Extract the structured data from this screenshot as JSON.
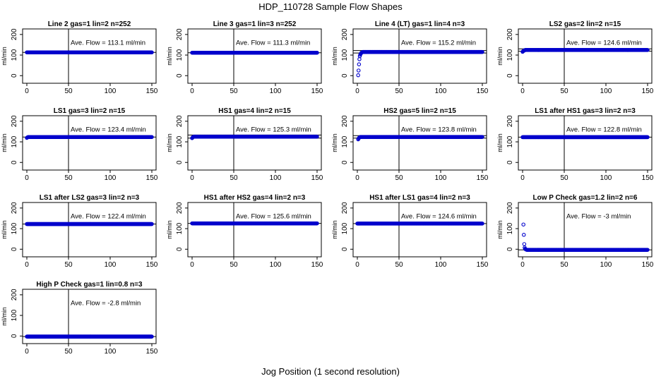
{
  "figure": {
    "title": "HDP_110728  Sample Flow Shapes",
    "xlabel": "Jog Position (1 second resolution)"
  },
  "chart_data": [
    {
      "type": "scatter",
      "title": "Line 2 gas=1 lin=2 n=252",
      "ylabel": "ml/min",
      "annotation": "Ave. Flow = 113.1  ml/min",
      "xlim": [
        0,
        150
      ],
      "ylim": [
        -30,
        220
      ],
      "xticks": [
        "0",
        "50",
        "100",
        "150"
      ],
      "yticks": [
        "0",
        "100",
        "200"
      ],
      "vline": 50,
      "hlines": [
        113.1
      ],
      "points": {
        "start": 0,
        "end": 150,
        "step": 0.5,
        "values": [
          113.1
        ]
      }
    },
    {
      "type": "scatter",
      "title": "Line 3 gas=1 lin=3 n=252",
      "ylabel": "ml/min",
      "annotation": "Ave. Flow = 111.3  ml/min",
      "xlim": [
        0,
        150
      ],
      "ylim": [
        -30,
        220
      ],
      "xticks": [
        "0",
        "50",
        "100",
        "150"
      ],
      "yticks": [
        "0",
        "100",
        "200"
      ],
      "vline": 50,
      "hlines": [
        111.3
      ],
      "points": {
        "start": 0,
        "end": 150,
        "step": 0.5,
        "values": [
          111.3
        ]
      }
    },
    {
      "type": "scatter",
      "title": "Line 4 (LT) gas=1 lin=4 n=3",
      "ylabel": "ml/min",
      "annotation": "Ave. Flow = 115.2  ml/min",
      "xlim": [
        0,
        150
      ],
      "ylim": [
        -30,
        220
      ],
      "xticks": [
        "0",
        "50",
        "100",
        "150"
      ],
      "yticks": [
        "0",
        "100",
        "200"
      ],
      "vline": 50,
      "hlines": [
        110,
        122
      ],
      "points": {
        "start": 1,
        "end": 150,
        "step": 0.5,
        "values": [
          2,
          25,
          55,
          80,
          95,
          102,
          106,
          109,
          111,
          113,
          114,
          115
        ]
      }
    },
    {
      "type": "scatter",
      "title": "LS2 gas=2 lin=2 n=15",
      "ylabel": "ml/min",
      "annotation": "Ave. Flow = 124.6  ml/min",
      "xlim": [
        0,
        150
      ],
      "ylim": [
        -30,
        220
      ],
      "xticks": [
        "0",
        "50",
        "100",
        "150"
      ],
      "yticks": [
        "0",
        "100",
        "200"
      ],
      "vline": 50,
      "hlines": [
        119,
        130
      ],
      "points": {
        "start": 0,
        "end": 150,
        "step": 0.5,
        "values": [
          116,
          118,
          120,
          121,
          122,
          123,
          124.6
        ]
      }
    },
    {
      "type": "scatter",
      "title": "LS1 gas=3 lin=2 n=15",
      "ylabel": "ml/min",
      "annotation": "Ave. Flow = 123.4  ml/min",
      "xlim": [
        0,
        150
      ],
      "ylim": [
        -30,
        220
      ],
      "xticks": [
        "0",
        "50",
        "100",
        "150"
      ],
      "yticks": [
        "0",
        "100",
        "200"
      ],
      "vline": 50,
      "hlines": [
        123.4
      ],
      "points": {
        "start": 0,
        "end": 150,
        "step": 0.5,
        "values": [
          119,
          121,
          122,
          123.4
        ]
      }
    },
    {
      "type": "scatter",
      "title": "HS1 gas=4 lin=2 n=15",
      "ylabel": "ml/min",
      "annotation": "Ave. Flow = 125.3  ml/min",
      "xlim": [
        0,
        150
      ],
      "ylim": [
        -30,
        220
      ],
      "xticks": [
        "0",
        "50",
        "100",
        "150"
      ],
      "yticks": [
        "0",
        "100",
        "200"
      ],
      "vline": 50,
      "hlines": [
        118,
        133
      ],
      "points": {
        "start": 0,
        "end": 150,
        "step": 0.5,
        "values": [
          118,
          121,
          123,
          124,
          125.3
        ]
      }
    },
    {
      "type": "scatter",
      "title": "HS2 gas=5 lin=2 n=15",
      "ylabel": "ml/min",
      "annotation": "Ave. Flow = 123.8  ml/min",
      "xlim": [
        0,
        150
      ],
      "ylim": [
        -30,
        220
      ],
      "xticks": [
        "0",
        "50",
        "100",
        "150"
      ],
      "yticks": [
        "0",
        "100",
        "200"
      ],
      "vline": 50,
      "hlines": [
        118,
        130
      ],
      "points": {
        "start": 1,
        "end": 150,
        "step": 0.5,
        "values": [
          112,
          116,
          119,
          121,
          122,
          123.8
        ]
      }
    },
    {
      "type": "scatter",
      "title": "LS1 after HS1 gas=3 lin=2 n=3",
      "ylabel": "ml/min",
      "annotation": "Ave. Flow = 122.8  ml/min",
      "xlim": [
        0,
        150
      ],
      "ylim": [
        -30,
        220
      ],
      "xticks": [
        "0",
        "50",
        "100",
        "150"
      ],
      "yticks": [
        "0",
        "100",
        "200"
      ],
      "vline": 50,
      "hlines": [
        122.8
      ],
      "points": {
        "start": 0,
        "end": 150,
        "step": 0.5,
        "values": [
          122.8
        ]
      }
    },
    {
      "type": "scatter",
      "title": "LS1 after LS2 gas=3 lin=2 n=3",
      "ylabel": "ml/min",
      "annotation": "Ave. Flow = 122.4  ml/min",
      "xlim": [
        0,
        150
      ],
      "ylim": [
        -30,
        220
      ],
      "xticks": [
        "0",
        "50",
        "100",
        "150"
      ],
      "yticks": [
        "0",
        "100",
        "200"
      ],
      "vline": 50,
      "hlines": [
        122.4
      ],
      "points": {
        "start": 0,
        "end": 150,
        "step": 0.5,
        "values": [
          122.4
        ]
      }
    },
    {
      "type": "scatter",
      "title": "HS1 after HS2 gas=4 lin=2 n=3",
      "ylabel": "ml/min",
      "annotation": "Ave. Flow = 125.6  ml/min",
      "xlim": [
        0,
        150
      ],
      "ylim": [
        -30,
        220
      ],
      "xticks": [
        "0",
        "50",
        "100",
        "150"
      ],
      "yticks": [
        "0",
        "100",
        "200"
      ],
      "vline": 50,
      "hlines": [
        125.6
      ],
      "points": {
        "start": 0,
        "end": 150,
        "step": 0.5,
        "values": [
          125.6
        ]
      }
    },
    {
      "type": "scatter",
      "title": "HS1 after LS1 gas=4 lin=2 n=3",
      "ylabel": "ml/min",
      "annotation": "Ave. Flow = 124.6  ml/min",
      "xlim": [
        0,
        150
      ],
      "ylim": [
        -30,
        220
      ],
      "xticks": [
        "0",
        "50",
        "100",
        "150"
      ],
      "yticks": [
        "0",
        "100",
        "200"
      ],
      "vline": 50,
      "hlines": [
        124.6
      ],
      "points": {
        "start": 0,
        "end": 150,
        "step": 0.5,
        "values": [
          124.6
        ]
      }
    },
    {
      "type": "scatter",
      "title": "Low P Check gas=1.2 lin=2 n=6",
      "ylabel": "ml/min",
      "annotation": "Ave. Flow = -3  ml/min",
      "xlim": [
        0,
        150
      ],
      "ylim": [
        -30,
        220
      ],
      "xticks": [
        "0",
        "50",
        "100",
        "150"
      ],
      "yticks": [
        "0",
        "100",
        "200"
      ],
      "vline": 50,
      "hlines": [
        -3
      ],
      "points": {
        "start": 1,
        "end": 150,
        "step": 0.5,
        "values": [
          120,
          70,
          25,
          8,
          2,
          0,
          -1,
          -2,
          -3
        ]
      }
    },
    {
      "type": "scatter",
      "title": "High P Check gas=1 lin=0.8 n=3",
      "ylabel": "ml/min",
      "annotation": "Ave. Flow =  -2.8  ml/min",
      "xlim": [
        0,
        150
      ],
      "ylim": [
        -30,
        220
      ],
      "xticks": [
        "0",
        "50",
        "100",
        "150"
      ],
      "yticks": [
        "0",
        "100",
        "200"
      ],
      "vline": 50,
      "hlines": [
        -2.8
      ],
      "points": {
        "start": 0,
        "end": 150,
        "step": 0.5,
        "values": [
          -2.8
        ]
      }
    }
  ],
  "colors": {
    "points": "#0000cc",
    "axes": "#000000",
    "background": "#ffffff"
  }
}
